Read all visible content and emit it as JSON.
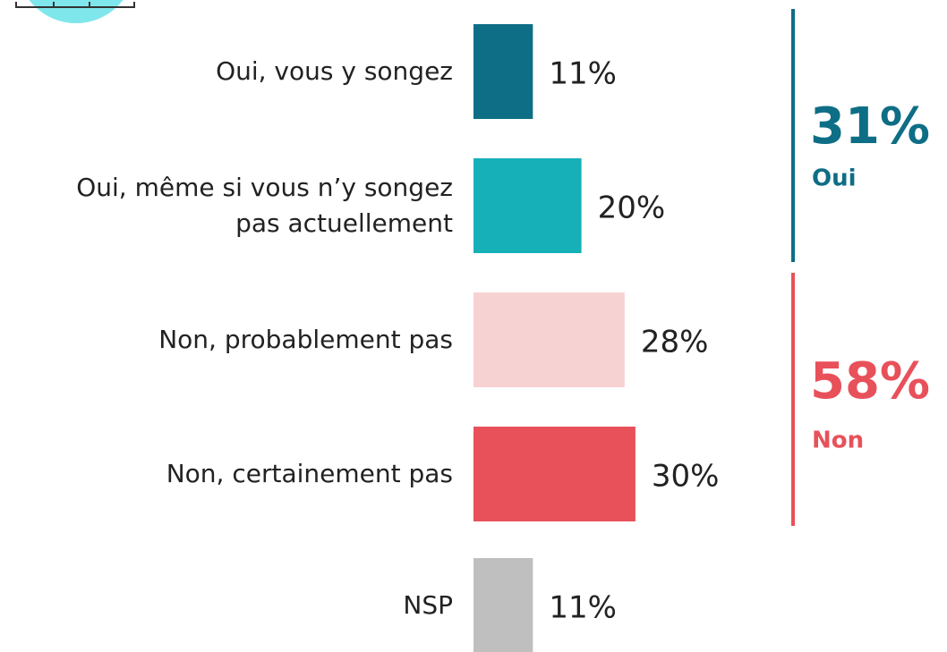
{
  "chart_data": {
    "type": "bar",
    "orientation": "horizontal",
    "categories": [
      "Oui, vous y songez",
      "Oui, même si vous n’y songez\npas actuellement",
      "Non, probablement pas",
      "Non, certainement pas",
      "NSP"
    ],
    "values": [
      11,
      20,
      28,
      30,
      11
    ],
    "value_labels": [
      "11%",
      "20%",
      "28%",
      "30%",
      "11%"
    ],
    "colors": [
      "#0e6e85",
      "#16b0b8",
      "#f7d2d3",
      "#e8515a",
      "#bfbfbf"
    ],
    "annotations": [
      {
        "label": "31%",
        "text": "Oui",
        "color": "#0e6e85"
      },
      {
        "label": "58%",
        "text": "Non",
        "color": "#e8515a"
      }
    ]
  }
}
